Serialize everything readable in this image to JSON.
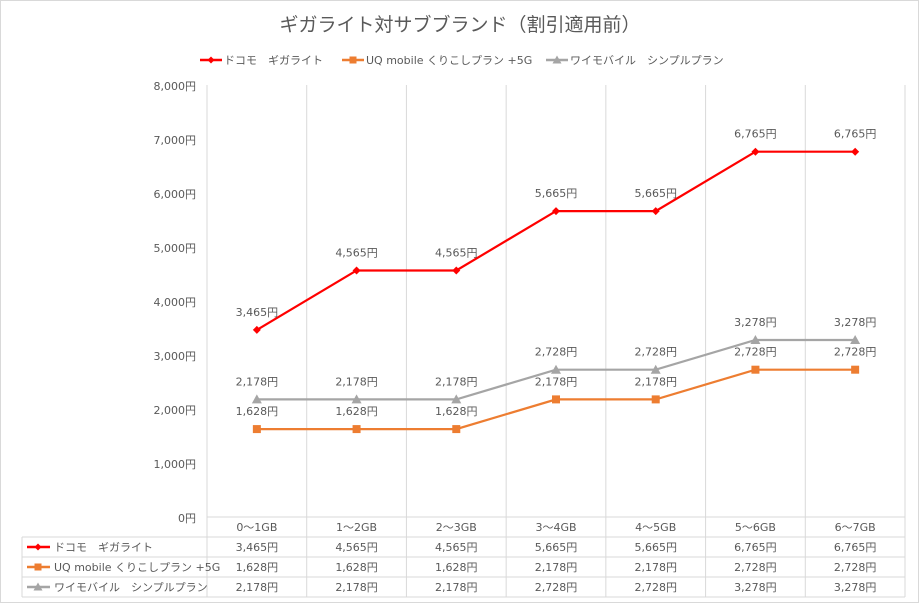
{
  "chart_data": {
    "type": "line",
    "title": "ギガライト対サブブランド（割引適用前）",
    "categories": [
      "0〜1GB",
      "1〜2GB",
      "2〜3GB",
      "3〜4GB",
      "4〜5GB",
      "5〜6GB",
      "6〜7GB"
    ],
    "ylim": [
      0,
      8000
    ],
    "yticks": [
      "0円",
      "1,000円",
      "2,000円",
      "3,000円",
      "4,000円",
      "5,000円",
      "6,000円",
      "7,000円",
      "8,000円"
    ],
    "grid": "vertical",
    "legend": "top",
    "data_table": true,
    "series": [
      {
        "name": "ドコモ　ギガライト",
        "color": "#ff0000",
        "marker": "diamond",
        "values": [
          3465,
          4565,
          4565,
          5665,
          5665,
          6765,
          6765
        ],
        "labels": [
          "3,465円",
          "4,565円",
          "4,565円",
          "5,665円",
          "5,665円",
          "6,765円",
          "6,765円"
        ]
      },
      {
        "name": "UQ mobile くりこしプラン +5G",
        "color": "#ed7d31",
        "marker": "square",
        "values": [
          1628,
          1628,
          1628,
          2178,
          2178,
          2728,
          2728
        ],
        "labels": [
          "1,628円",
          "1,628円",
          "1,628円",
          "2,178円",
          "2,178円",
          "2,728円",
          "2,728円"
        ]
      },
      {
        "name": "ワイモバイル　シンプルプラン",
        "color": "#a5a5a5",
        "marker": "triangle",
        "values": [
          2178,
          2178,
          2178,
          2728,
          2728,
          3278,
          3278
        ],
        "labels": [
          "2,178円",
          "2,178円",
          "2,178円",
          "2,728円",
          "2,728円",
          "3,278円",
          "3,278円"
        ]
      }
    ]
  }
}
